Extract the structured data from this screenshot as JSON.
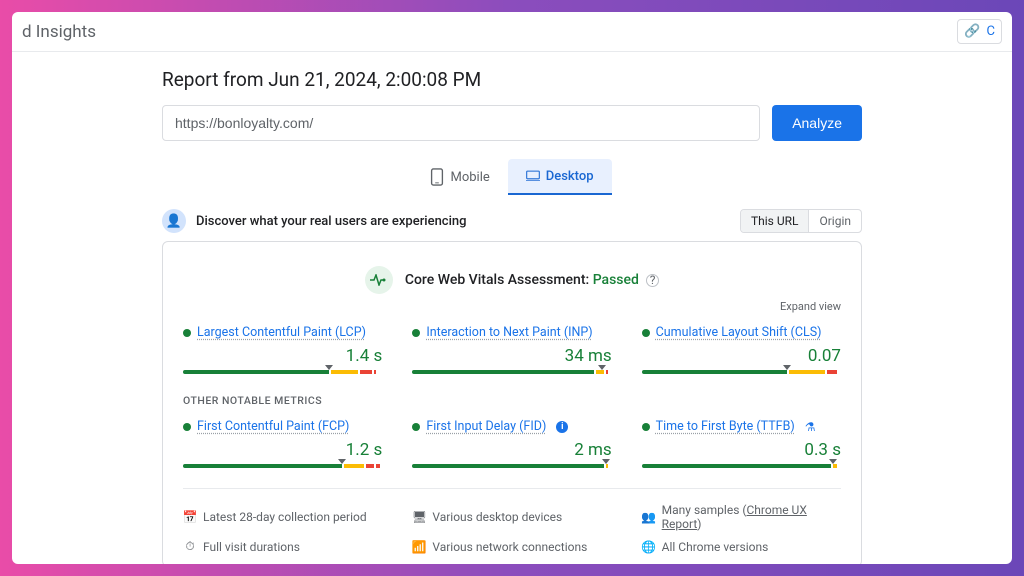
{
  "topbar": {
    "brand_suffix": "d Insights",
    "right_label": "C"
  },
  "report": {
    "title": "Report from Jun 21, 2024, 2:00:08 PM",
    "url_value": "https://bonloyalty.com/",
    "analyze_label": "Analyze"
  },
  "tabs": {
    "mobile": "Mobile",
    "desktop": "Desktop"
  },
  "discover": {
    "text": "Discover what your real users are experiencing",
    "toggle_url": "This URL",
    "toggle_origin": "Origin"
  },
  "cwv": {
    "title_prefix": "Core Web Vitals Assessment: ",
    "status": "Passed",
    "expand": "Expand view"
  },
  "metrics_main": [
    {
      "name": "Largest Contentful Paint (LCP)",
      "value": "1.4 s",
      "marker_pct": 73,
      "segs": [
        73,
        2,
        14,
        2,
        6,
        2,
        1
      ]
    },
    {
      "name": "Interaction to Next Paint (INP)",
      "value": "34 ms",
      "marker_pct": 95,
      "segs": [
        91,
        2,
        4,
        2,
        1
      ]
    },
    {
      "name": "Cumulative Layout Shift (CLS)",
      "value": "0.07",
      "marker_pct": 73,
      "segs": [
        73,
        2,
        18,
        2,
        5
      ]
    }
  ],
  "section_label": "OTHER NOTABLE METRICS",
  "metrics_other": [
    {
      "name": "First Contentful Paint (FCP)",
      "value": "1.2 s",
      "marker_pct": 80,
      "segs": [
        80,
        2,
        10,
        2,
        4,
        2,
        2
      ],
      "badge": null
    },
    {
      "name": "First Input Delay (FID)",
      "value": "2 ms",
      "marker_pct": 97,
      "segs": [
        96,
        2,
        1,
        1,
        0
      ],
      "badge": "info"
    },
    {
      "name": "Time to First Byte (TTFB)",
      "value": "0.3 s",
      "marker_pct": 96,
      "segs": [
        95,
        2,
        2,
        1,
        0
      ],
      "badge": "flask"
    }
  ],
  "footer": {
    "items": [
      {
        "icon": "calendar",
        "text": "Latest 28-day collection period"
      },
      {
        "icon": "devices",
        "text": "Various desktop devices"
      },
      {
        "icon": "people",
        "text_prefix": "Many samples (",
        "link": "Chrome UX Report",
        "text_suffix": ")"
      },
      {
        "icon": "timer",
        "text": "Full visit durations"
      },
      {
        "icon": "wifi",
        "text": "Various network connections"
      },
      {
        "icon": "chrome",
        "text": "All Chrome versions"
      }
    ]
  },
  "colors": {
    "green": "#188038",
    "yellow": "#fbbc04",
    "red": "#ea4335",
    "blue": "#1a73e8"
  }
}
